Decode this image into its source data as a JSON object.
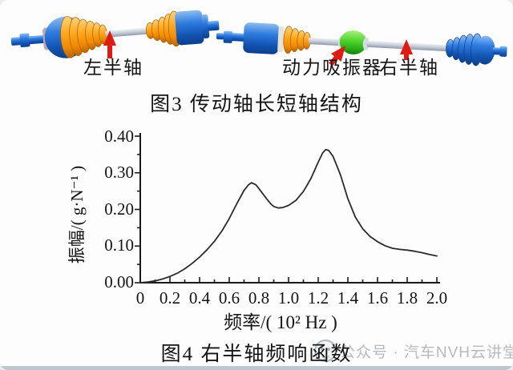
{
  "figure3": {
    "caption": "图3  传动轴长短轴结构",
    "label_left_shaft": "左半轴",
    "label_absorber": "动力吸振器",
    "label_right_shaft": "右半轴",
    "colors": {
      "joint_blue": "#1a66c9",
      "boot_orange": "#f49500",
      "absorber_green": "#35c81e",
      "shaft_gray": "#c7ccd7",
      "arrow_red": "#e01b12"
    }
  },
  "figure4": {
    "caption": "图4  右半轴频响函数"
  },
  "chart_data": {
    "type": "line",
    "title": "",
    "xlabel": "频率/( 10² Hz )",
    "ylabel": "振幅/( g·N⁻¹ )",
    "xlim": [
      0,
      2.0
    ],
    "ylim": [
      0,
      0.4
    ],
    "xtick_step": 0.2,
    "xminor_step": 0.1,
    "ytick_step": 0.1,
    "yminor_step": 0.05,
    "grid": false,
    "legend": "none",
    "line_color": "#2b2b2b",
    "axis_color": "#1a1a1a",
    "xticks": [
      "0",
      "0.2",
      "0.4",
      "0.6",
      "0.8",
      "1.0",
      "1.2",
      "1.4",
      "1.6",
      "1.8",
      "2.0"
    ],
    "yticks": [
      "0.00",
      "0.10",
      "0.20",
      "0.30",
      "0.40"
    ],
    "points": [
      [
        0.0,
        0.0
      ],
      [
        0.05,
        0.002
      ],
      [
        0.1,
        0.005
      ],
      [
        0.15,
        0.01
      ],
      [
        0.2,
        0.017
      ],
      [
        0.25,
        0.026
      ],
      [
        0.3,
        0.038
      ],
      [
        0.35,
        0.053
      ],
      [
        0.4,
        0.07
      ],
      [
        0.45,
        0.09
      ],
      [
        0.5,
        0.113
      ],
      [
        0.55,
        0.141
      ],
      [
        0.6,
        0.175
      ],
      [
        0.65,
        0.215
      ],
      [
        0.7,
        0.252
      ],
      [
        0.73,
        0.267
      ],
      [
        0.75,
        0.273
      ],
      [
        0.78,
        0.267
      ],
      [
        0.8,
        0.257
      ],
      [
        0.85,
        0.23
      ],
      [
        0.88,
        0.215
      ],
      [
        0.9,
        0.208
      ],
      [
        0.93,
        0.204
      ],
      [
        0.96,
        0.205
      ],
      [
        1.0,
        0.211
      ],
      [
        1.05,
        0.225
      ],
      [
        1.1,
        0.249
      ],
      [
        1.15,
        0.284
      ],
      [
        1.2,
        0.329
      ],
      [
        1.23,
        0.354
      ],
      [
        1.25,
        0.363
      ],
      [
        1.27,
        0.361
      ],
      [
        1.3,
        0.345
      ],
      [
        1.35,
        0.294
      ],
      [
        1.4,
        0.229
      ],
      [
        1.45,
        0.179
      ],
      [
        1.5,
        0.147
      ],
      [
        1.55,
        0.126
      ],
      [
        1.6,
        0.112
      ],
      [
        1.65,
        0.101
      ],
      [
        1.7,
        0.094
      ],
      [
        1.75,
        0.091
      ],
      [
        1.8,
        0.089
      ],
      [
        1.85,
        0.086
      ],
      [
        1.9,
        0.082
      ],
      [
        1.95,
        0.077
      ],
      [
        2.0,
        0.073
      ]
    ]
  },
  "watermark": {
    "logo": "smiley-badge-icon",
    "text": "公众号 · 汽车NVH云讲堂"
  }
}
